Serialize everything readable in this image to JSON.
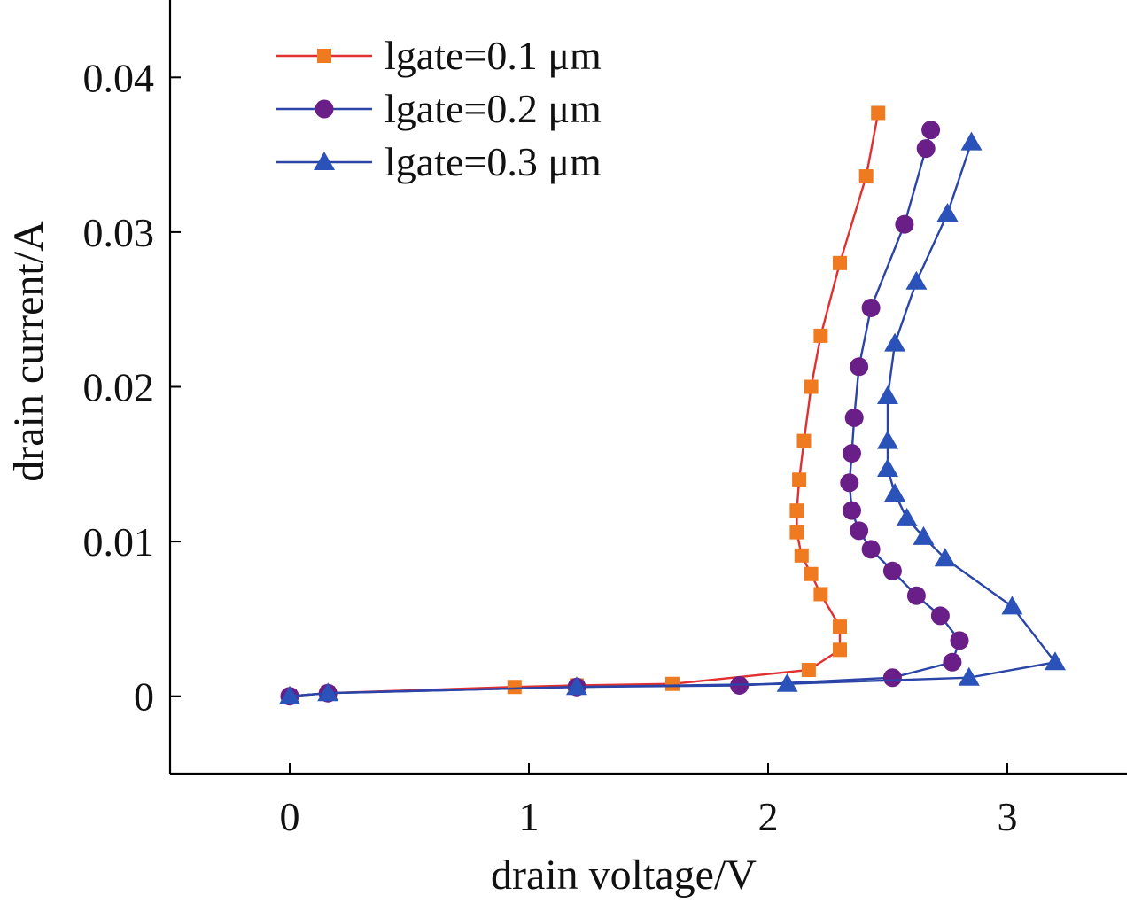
{
  "chart_data": {
    "type": "line",
    "xlabel": "drain voltage/V",
    "ylabel": "drain current/A",
    "xlim": [
      -0.5,
      3.5
    ],
    "ylim": [
      -0.005,
      0.045
    ],
    "x_ticks": [
      0,
      1,
      2,
      3
    ],
    "x_tick_labels": [
      "0",
      "1",
      "2",
      "3"
    ],
    "y_ticks": [
      0,
      0.01,
      0.02,
      0.03,
      0.04
    ],
    "y_tick_labels": [
      "0",
      "0.01",
      "0.02",
      "0.03",
      "0.04"
    ],
    "grid": false,
    "legend_position": "top-left",
    "series": [
      {
        "name": "lgate=0.1 μm",
        "color": "#e03030",
        "marker_color": "#f07a20",
        "marker": "square",
        "points": [
          [
            0.0,
            0.0
          ],
          [
            0.16,
            0.0002
          ],
          [
            0.94,
            0.0006
          ],
          [
            1.2,
            0.0007
          ],
          [
            1.6,
            0.0008
          ],
          [
            2.17,
            0.0017
          ],
          [
            2.3,
            0.003
          ],
          [
            2.3,
            0.0045
          ],
          [
            2.22,
            0.0066
          ],
          [
            2.18,
            0.0079
          ],
          [
            2.14,
            0.0091
          ],
          [
            2.12,
            0.0106
          ],
          [
            2.12,
            0.012
          ],
          [
            2.13,
            0.014
          ],
          [
            2.15,
            0.0165
          ],
          [
            2.18,
            0.02
          ],
          [
            2.22,
            0.0233
          ],
          [
            2.3,
            0.028
          ],
          [
            2.41,
            0.0336
          ],
          [
            2.46,
            0.0377
          ]
        ]
      },
      {
        "name": "lgate=0.2 μm",
        "color": "#2a44a8",
        "marker_color": "#6a1e88",
        "marker": "circle",
        "points": [
          [
            0.0,
            0.0
          ],
          [
            0.16,
            0.0002
          ],
          [
            1.2,
            0.0006
          ],
          [
            1.88,
            0.0007
          ],
          [
            2.52,
            0.0012
          ],
          [
            2.77,
            0.0022
          ],
          [
            2.8,
            0.0036
          ],
          [
            2.72,
            0.0052
          ],
          [
            2.62,
            0.0065
          ],
          [
            2.52,
            0.0081
          ],
          [
            2.43,
            0.0095
          ],
          [
            2.38,
            0.0107
          ],
          [
            2.35,
            0.012
          ],
          [
            2.34,
            0.0138
          ],
          [
            2.35,
            0.0157
          ],
          [
            2.36,
            0.018
          ],
          [
            2.38,
            0.0213
          ],
          [
            2.43,
            0.0251
          ],
          [
            2.57,
            0.0305
          ],
          [
            2.66,
            0.0354
          ],
          [
            2.68,
            0.0366
          ]
        ]
      },
      {
        "name": "lgate=0.3 μm",
        "color": "#2a44a8",
        "marker_color": "#2a52b8",
        "marker": "triangle",
        "points": [
          [
            0.0,
            0.0
          ],
          [
            0.16,
            0.0002
          ],
          [
            1.2,
            0.0006
          ],
          [
            2.08,
            0.0008
          ],
          [
            2.84,
            0.0012
          ],
          [
            3.2,
            0.0022
          ],
          [
            3.02,
            0.0058
          ],
          [
            2.74,
            0.0089
          ],
          [
            2.65,
            0.0103
          ],
          [
            2.58,
            0.0115
          ],
          [
            2.53,
            0.0131
          ],
          [
            2.5,
            0.0147
          ],
          [
            2.5,
            0.0165
          ],
          [
            2.5,
            0.0194
          ],
          [
            2.53,
            0.0228
          ],
          [
            2.62,
            0.0268
          ],
          [
            2.75,
            0.0312
          ],
          [
            2.85,
            0.0358
          ]
        ]
      }
    ]
  }
}
